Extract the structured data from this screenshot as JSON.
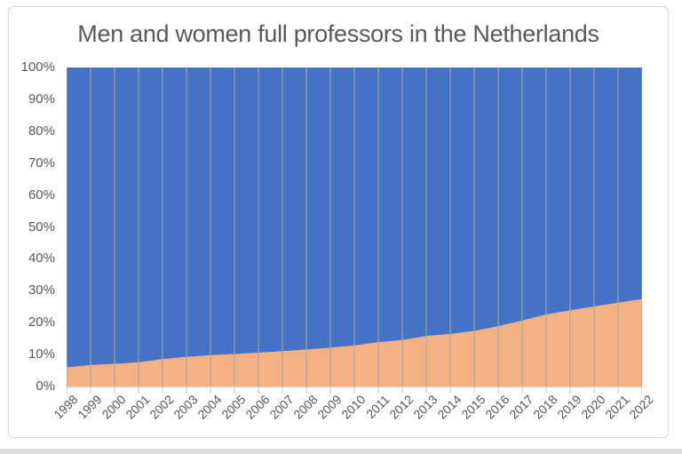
{
  "chart": {
    "title_color": "#595959",
    "axis_label_color": "#595959",
    "frame_border_color": "#D9D9D9",
    "gridline_color_rgba": "rgba(166,166,166,0.6)",
    "tick_color": "#D9D9D9",
    "y_tick_labels": [
      "100%",
      "90%",
      "80%",
      "70%",
      "60%",
      "50%",
      "40%",
      "30%",
      "20%",
      "10%",
      "0%"
    ]
  },
  "chart_data": {
    "type": "area",
    "stacking": "percent",
    "title": "Men and women full professors in the Netherlands",
    "xlabel": "",
    "ylabel": "",
    "ylim": [
      0,
      100
    ],
    "y_tick_step_percent": 10,
    "legend": "none",
    "gridlines": "vertical-only",
    "categories": [
      "1998",
      "1999",
      "2000",
      "2001",
      "2002",
      "2003",
      "2004",
      "2005",
      "2006",
      "2007",
      "2008",
      "2009",
      "2010",
      "2011",
      "2012",
      "2013",
      "2014",
      "2015",
      "2016",
      "2017",
      "2018",
      "2019",
      "2020",
      "2021",
      "2022"
    ],
    "series": [
      {
        "name": "Women",
        "position": "bottom",
        "color": "#F4B183",
        "values": [
          6.0,
          6.7,
          7.1,
          7.6,
          8.6,
          9.3,
          9.8,
          10.2,
          10.6,
          11.1,
          11.6,
          12.2,
          12.9,
          13.9,
          14.6,
          15.8,
          16.5,
          17.4,
          18.9,
          20.7,
          22.6,
          23.9,
          25.1,
          26.3,
          27.4
        ]
      },
      {
        "name": "Men",
        "position": "top",
        "color": "#4472C4",
        "values": [
          94.0,
          93.3,
          92.9,
          92.4,
          91.4,
          90.7,
          90.2,
          89.8,
          89.4,
          88.9,
          88.4,
          87.8,
          87.1,
          86.1,
          85.4,
          84.2,
          83.5,
          82.6,
          81.1,
          79.3,
          77.4,
          76.1,
          74.9,
          73.7,
          72.6
        ]
      }
    ]
  }
}
